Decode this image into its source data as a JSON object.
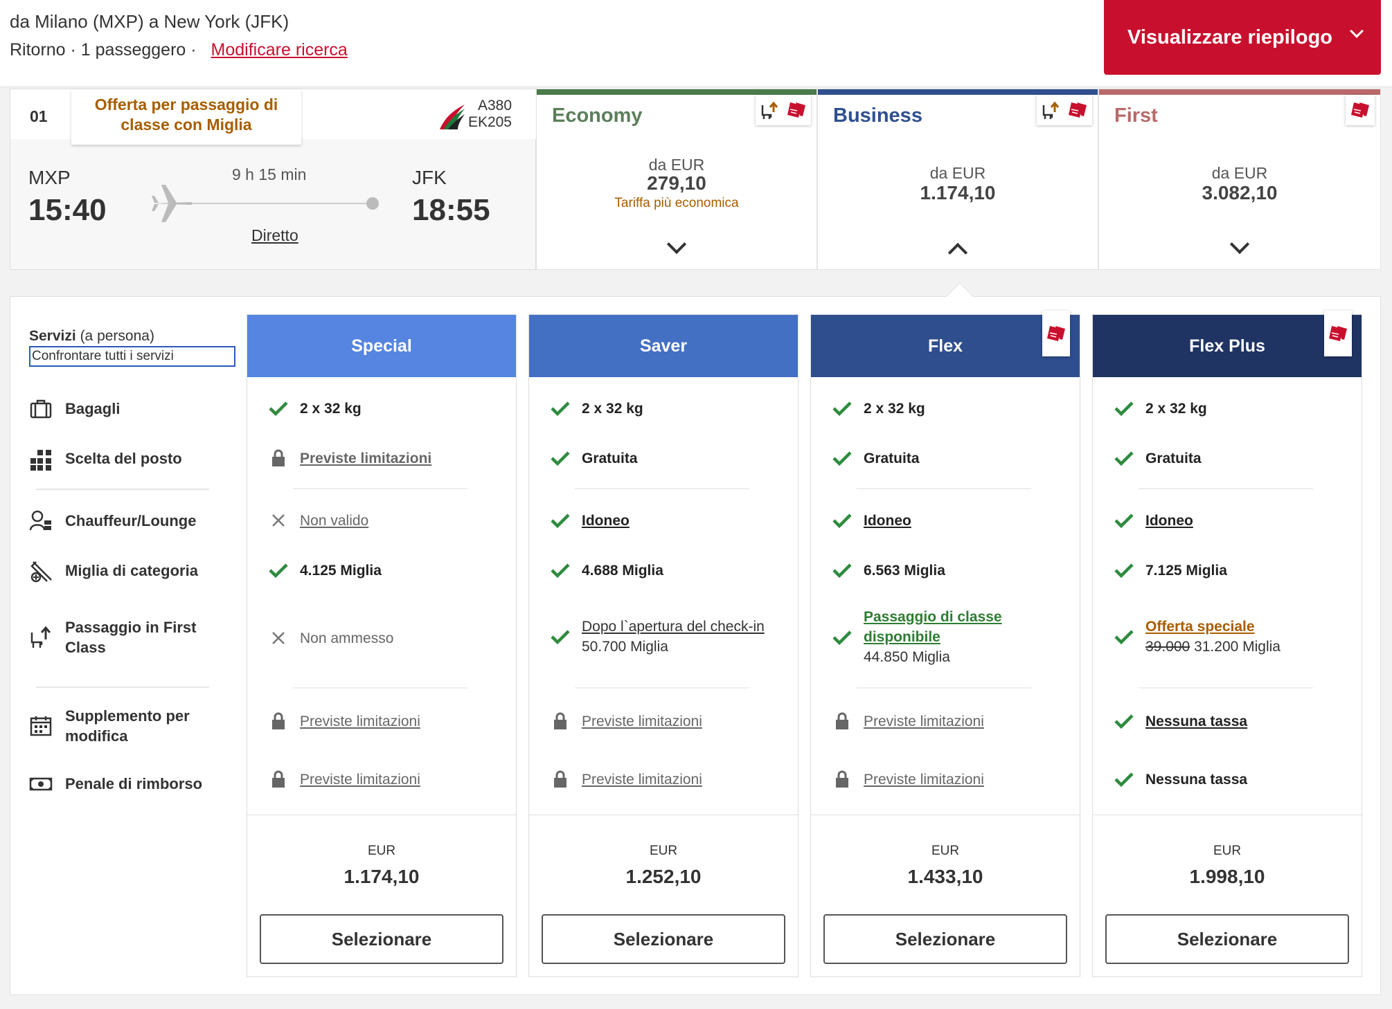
{
  "header": {
    "route": "da Milano (MXP) a New York (JFK)",
    "subline": "Ritorno · 1 passeggero ·",
    "modify_link": "Modificare ricerca",
    "summary_button": "Visualizzare riepilogo"
  },
  "flight": {
    "number": "01",
    "miles_offer": "Offerta per passaggio di classe con Miglia",
    "aircraft": "A380",
    "flight_code": "EK205",
    "departure_code": "MXP",
    "departure_time": "15:40",
    "arrival_code": "JFK",
    "arrival_time": "18:55",
    "duration": "9 h 15 min",
    "stops": "Diretto"
  },
  "cabins": [
    {
      "name": "Economy",
      "from": "da EUR",
      "price": "279,10",
      "note": "Tariffa più economica",
      "color": "#4b7a4b",
      "text_color": "#5b7f5b",
      "expanded": false
    },
    {
      "name": "Business",
      "from": "da EUR",
      "price": "1.174,10",
      "note": "",
      "color": "#2f4f8f",
      "text_color": "#2f4f8f",
      "expanded": true
    },
    {
      "name": "First",
      "from": "da EUR",
      "price": "3.082,10",
      "note": "",
      "color": "#b86a6a",
      "text_color": "#b86a6a",
      "expanded": false
    }
  ],
  "services": {
    "title": "Servizi",
    "title_suffix": "(a persona)",
    "compare": "Confrontare tutti i servizi",
    "items": {
      "baggage": "Bagagli",
      "seat": "Scelta del posto",
      "chauffeur": "Chauffeur/Lounge",
      "miles": "Miglia di categoria",
      "upgrade": "Passaggio in First Class",
      "change": "Supplemento per modifica",
      "refund": "Penale di rimborso"
    }
  },
  "fares": [
    {
      "name": "Special",
      "color": "#5585e0",
      "baggage": "2 x 32 kg",
      "seat": "Previste limitazioni",
      "chauffeur": "Non valido",
      "miles": "4.125 Miglia",
      "upgrade": "Non ammesso",
      "change": "Previste limitazioni",
      "refund": "Previste limitazioni",
      "currency": "EUR",
      "price": "1.174,10",
      "button": "Selezionare"
    },
    {
      "name": "Saver",
      "color": "#4470c4",
      "baggage": "2 x 32 kg",
      "seat": "Gratuita",
      "chauffeur": "Idoneo",
      "miles": "4.688 Miglia",
      "upgrade_line1": "Dopo l`apertura del check-in",
      "upgrade_line2": "50.700 Miglia",
      "change": "Previste limitazioni",
      "refund": "Previste limitazioni",
      "currency": "EUR",
      "price": "1.252,10",
      "button": "Selezionare"
    },
    {
      "name": "Flex",
      "color": "#2f4e8e",
      "baggage": "2 x 32 kg",
      "seat": "Gratuita",
      "chauffeur": "Idoneo",
      "miles": "6.563 Miglia",
      "upgrade_line1": "Passaggio di classe",
      "upgrade_line1b": "disponibile",
      "upgrade_line2": "44.850 Miglia",
      "change": "Previste limitazioni",
      "refund": "Previste limitazioni",
      "currency": "EUR",
      "price": "1.433,10",
      "button": "Selezionare"
    },
    {
      "name": "Flex Plus",
      "color": "#1f3463",
      "baggage": "2 x 32 kg",
      "seat": "Gratuita",
      "chauffeur": "Idoneo",
      "miles": "7.125 Miglia",
      "upgrade_line1": "Offerta speciale",
      "upgrade_old": "39.000",
      "upgrade_new": "31.200 Miglia",
      "change": "Nessuna tassa",
      "refund": "Nessuna tassa",
      "currency": "EUR",
      "price": "1.998,10",
      "button": "Selezionare"
    }
  ]
}
